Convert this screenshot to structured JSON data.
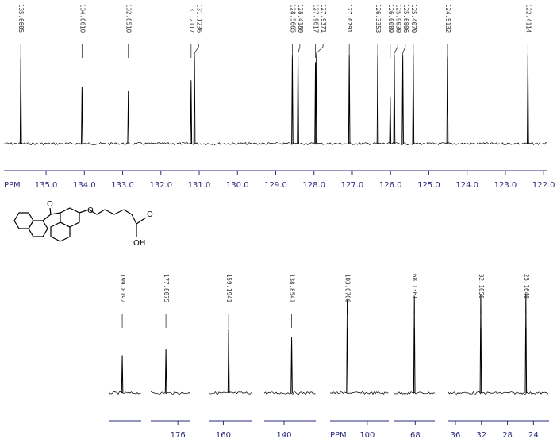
{
  "structure": {
    "atoms": [
      "O",
      "O",
      "OH",
      "O"
    ]
  },
  "chart_data": [
    {
      "type": "spectrum",
      "x_label": "PPM",
      "xlim": [
        136.1,
        121.9
      ],
      "ylim": [
        0,
        100
      ],
      "xticks": [
        {
          "value": 135,
          "label": "135.0"
        },
        {
          "value": 134,
          "label": "134.0"
        },
        {
          "value": 133,
          "label": "133.0"
        },
        {
          "value": 132,
          "label": "132.0"
        },
        {
          "value": 131,
          "label": "131.0"
        },
        {
          "value": 130,
          "label": "130.0"
        },
        {
          "value": 129,
          "label": "129.0"
        },
        {
          "value": 128,
          "label": "128.0"
        },
        {
          "value": 127,
          "label": "127.0"
        },
        {
          "value": 126,
          "label": "126.0"
        },
        {
          "value": 125,
          "label": "125.0"
        },
        {
          "value": 124,
          "label": "124.0"
        },
        {
          "value": 123,
          "label": "123.0"
        },
        {
          "value": 122,
          "label": "122.0"
        }
      ],
      "x": [
        135.6605,
        134.061,
        132.851,
        131.2117,
        131.1236,
        128.5665,
        128.418,
        127.9617,
        127.9371,
        127.0791,
        126.3353,
        126.0089,
        125.903,
        125.6806,
        125.407,
        124.5132,
        122.4114
      ],
      "x_labels": [
        "135.6605",
        "134.0610",
        "132.8510",
        "131.2117",
        "131.1236",
        "128.5665",
        "128.4180",
        "127.9617",
        "127.9371",
        "127.0791",
        "126.3353",
        "126.0089",
        "125.9030",
        "125.6806",
        "125.4070",
        "124.5132",
        "122.4114"
      ],
      "values": [
        95,
        63,
        58,
        70,
        100,
        98,
        98,
        90,
        98,
        98,
        98,
        52,
        98,
        98,
        98,
        98,
        98
      ],
      "color": "#000000"
    },
    {
      "type": "spectrum",
      "xlim": [
        201.9,
        196.9
      ],
      "ylim": [
        0,
        100
      ],
      "x": [
        199.8192
      ],
      "x_labels": [
        "199.8192"
      ],
      "values": [
        38
      ],
      "color": "#000000"
    },
    {
      "type": "spectrum",
      "xlim": [
        180.1,
        174.1
      ],
      "ylim": [
        0,
        100
      ],
      "xticks": [
        176
      ],
      "x": [
        177.8075
      ],
      "x_labels": [
        "177.8075"
      ],
      "values": [
        44
      ],
      "color": "#000000"
    },
    {
      "type": "spectrum",
      "xlim": [
        162.1,
        155.6
      ],
      "ylim": [
        0,
        100
      ],
      "xticks": [
        160
      ],
      "x": [
        159.1941
      ],
      "x_labels": [
        "159.1941"
      ],
      "values": [
        64
      ],
      "color": "#000000"
    },
    {
      "type": "spectrum",
      "xlim": [
        143.0,
        135.2
      ],
      "ylim": [
        0,
        100
      ],
      "xticks": [
        140
      ],
      "x": [
        138.8541
      ],
      "x_labels": [
        "138.8541"
      ],
      "values": [
        56
      ],
      "color": "#000000"
    },
    {
      "type": "spectrum",
      "x_label": "PPM",
      "xlim": [
        105.7,
        96.7
      ],
      "ylim": [
        0,
        100
      ],
      "xticks": [
        100
      ],
      "x": [
        103.0706
      ],
      "x_labels": [
        "103.0706"
      ],
      "values": [
        94
      ],
      "color": "#000000"
    },
    {
      "type": "spectrum",
      "xlim": [
        71.2,
        65.0
      ],
      "ylim": [
        0,
        100
      ],
      "xticks": [
        68
      ],
      "x": [
        68.1361
      ],
      "x_labels": [
        "68.1361"
      ],
      "values": [
        98
      ],
      "color": "#000000"
    },
    {
      "type": "spectrum",
      "xlim": [
        37.1,
        21.6
      ],
      "ylim": [
        0,
        100
      ],
      "xticks": [
        36,
        32,
        28,
        24
      ],
      "x": [
        32.1059,
        25.164
      ],
      "x_labels": [
        "32.1059",
        "25.1640"
      ],
      "values": [
        100,
        100
      ],
      "color": "#000000"
    }
  ]
}
